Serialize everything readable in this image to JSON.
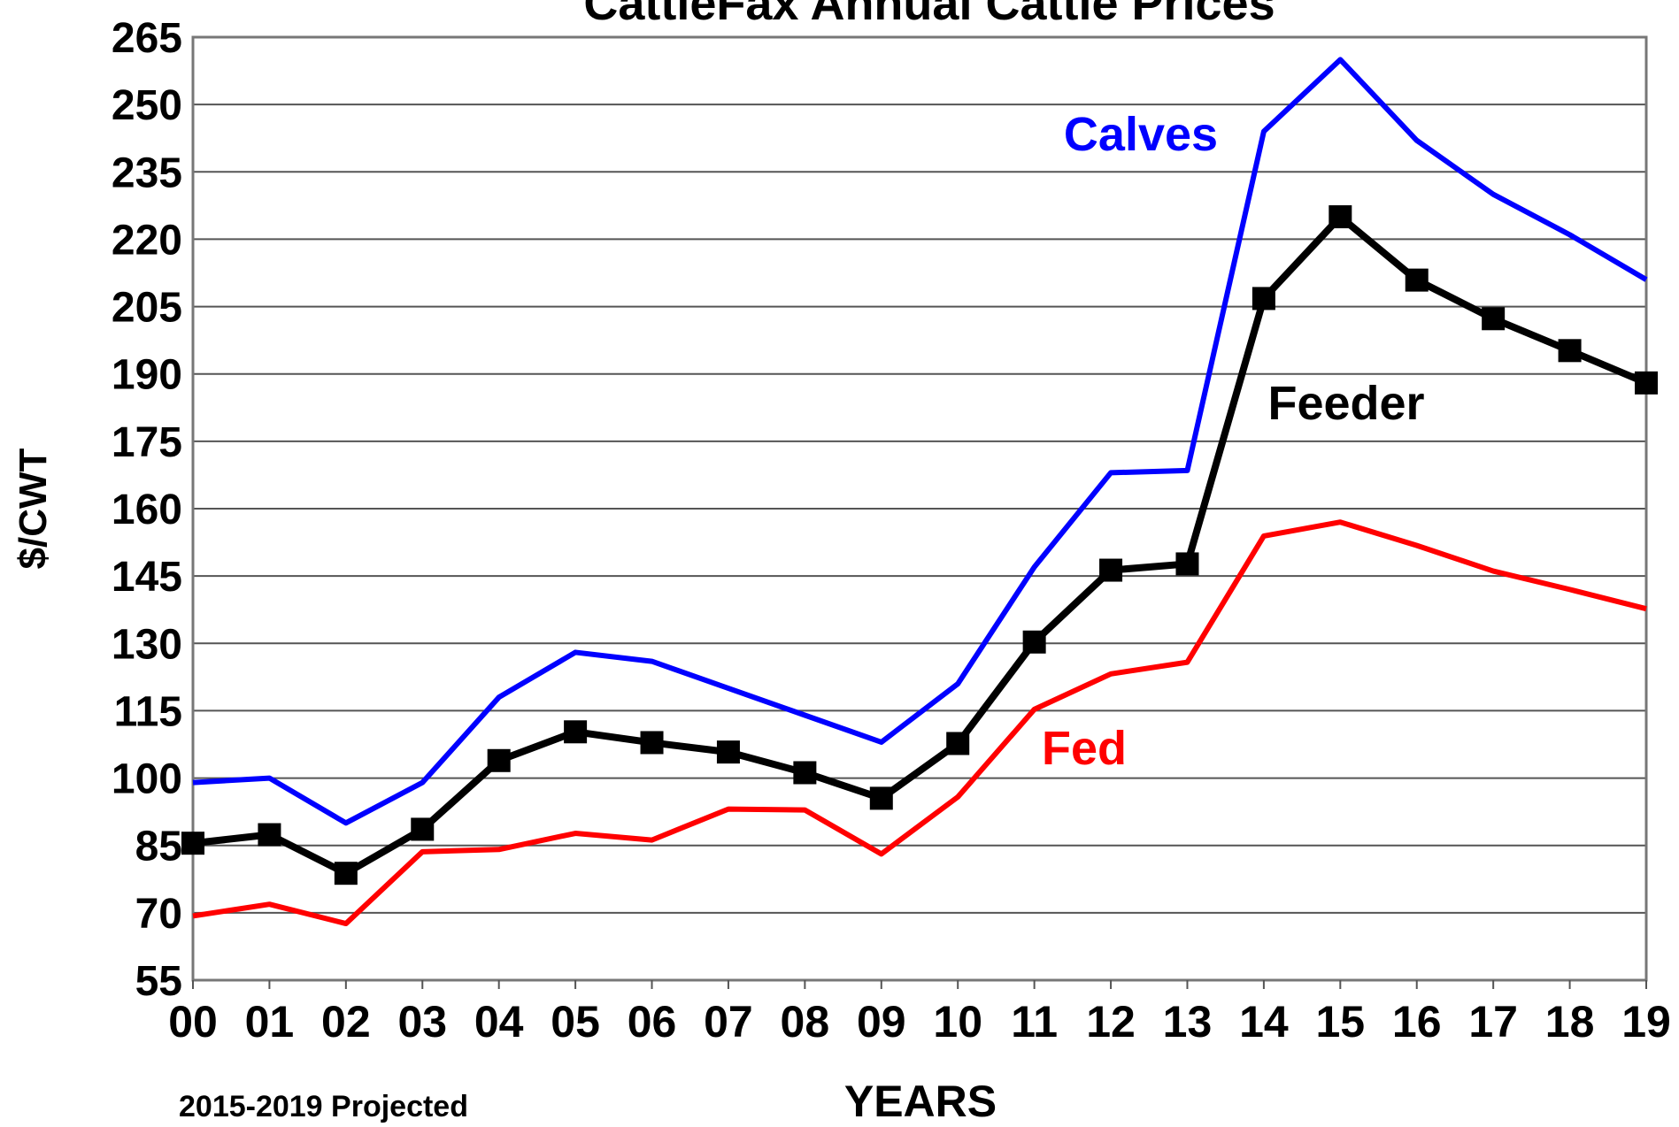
{
  "chart_data": {
    "type": "line",
    "title": "CattleFax Annual Cattle Prices",
    "y_label": "$/CWT",
    "x_label": "YEARS",
    "note": "2015-2019 Projected",
    "categories": [
      "00",
      "01",
      "02",
      "03",
      "04",
      "05",
      "06",
      "07",
      "08",
      "09",
      "10",
      "11",
      "12",
      "13",
      "14",
      "15",
      "16",
      "17",
      "18",
      "19"
    ],
    "ylim": [
      55,
      265
    ],
    "yticks": [
      55,
      70,
      85,
      100,
      115,
      130,
      145,
      160,
      175,
      190,
      205,
      220,
      235,
      250,
      265
    ],
    "grid": true,
    "series": [
      {
        "name": "Calves",
        "color": "#0000ff",
        "values": [
          99,
          100,
          90,
          99,
          118,
          128,
          126,
          120,
          114,
          108,
          121,
          147,
          168,
          168.5,
          244,
          260,
          242,
          230,
          221,
          211
        ]
      },
      {
        "name": "Feeder",
        "color": "#000000",
        "marker": "square",
        "values": [
          85.5,
          87.4,
          78.8,
          88.6,
          103.9,
          110.3,
          107.9,
          105.8,
          101.2,
          95.5,
          107.7,
          130.3,
          146.3,
          147.7,
          206.8,
          225,
          210.9,
          202.3,
          195.2,
          188
        ]
      },
      {
        "name": "Fed",
        "color": "#ff0000",
        "values": [
          69.3,
          71.9,
          67.6,
          83.6,
          84.1,
          87.7,
          86.2,
          93.1,
          92.9,
          83.1,
          95.8,
          115.3,
          123.2,
          125.8,
          153.9,
          157,
          151.8,
          146.1,
          142,
          137.7
        ]
      }
    ]
  }
}
